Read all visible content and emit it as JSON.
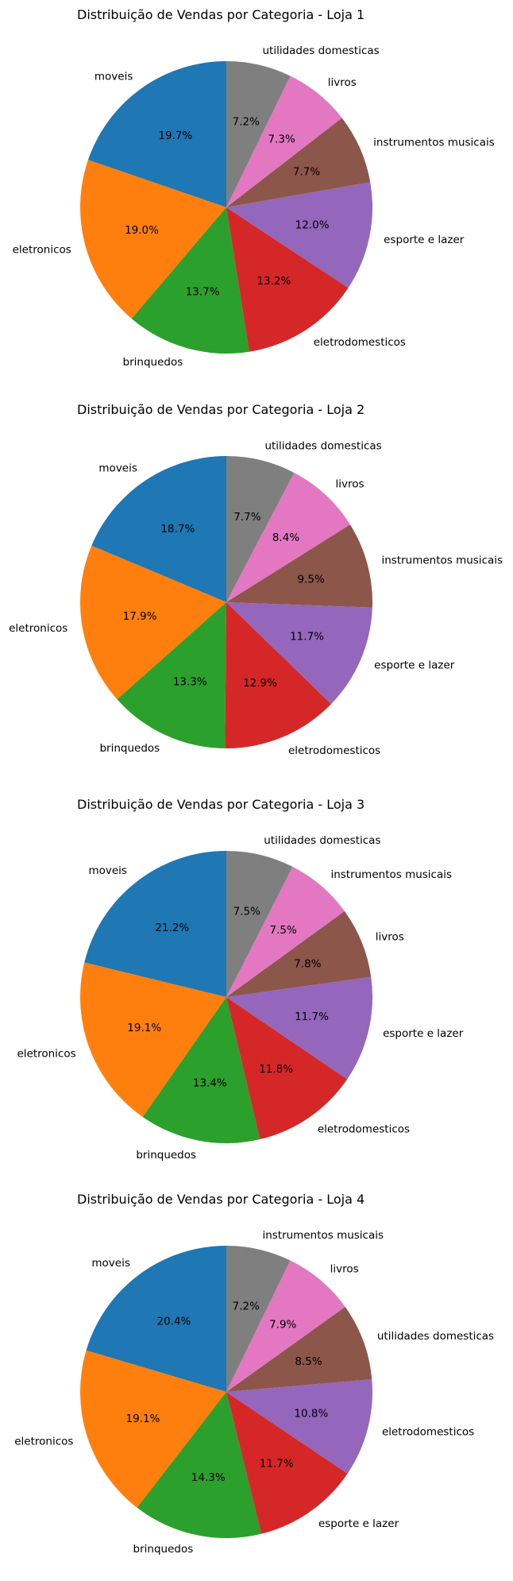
{
  "colors": [
    "#1f77b4",
    "#ff7f0e",
    "#2ca02c",
    "#d62728",
    "#9467bd",
    "#8c564b",
    "#e377c2",
    "#7f7f7f"
  ],
  "chart_data": [
    {
      "type": "pie",
      "title": "Distribuição de Vendas por Categoria - Loja 1",
      "start_angle_deg": 90,
      "direction": "counterclockwise",
      "labels": [
        "moveis",
        "eletronicos",
        "brinquedos",
        "eletrodomesticos",
        "esporte e lazer",
        "instrumentos musicais",
        "livros",
        "utilidades domesticas"
      ],
      "values": [
        19.7,
        19.0,
        13.7,
        13.2,
        12.0,
        7.7,
        7.3,
        7.2
      ],
      "value_labels": [
        "19.7%",
        "19.0%",
        "13.7%",
        "13.2%",
        "12.0%",
        "7.7%",
        "7.3%",
        "7.2%"
      ]
    },
    {
      "type": "pie",
      "title": "Distribuição de Vendas por Categoria - Loja 2",
      "start_angle_deg": 90,
      "direction": "counterclockwise",
      "labels": [
        "moveis",
        "eletronicos",
        "brinquedos",
        "eletrodomesticos",
        "esporte e lazer",
        "instrumentos musicais",
        "livros",
        "utilidades domesticas"
      ],
      "values": [
        18.7,
        17.9,
        13.3,
        12.9,
        11.7,
        9.5,
        8.4,
        7.7
      ],
      "value_labels": [
        "18.7%",
        "17.9%",
        "13.3%",
        "12.9%",
        "11.7%",
        "9.5%",
        "8.4%",
        "7.7%"
      ]
    },
    {
      "type": "pie",
      "title": "Distribuição de Vendas por Categoria - Loja 3",
      "start_angle_deg": 90,
      "direction": "counterclockwise",
      "labels": [
        "moveis",
        "eletronicos",
        "brinquedos",
        "eletrodomesticos",
        "esporte e lazer",
        "livros",
        "instrumentos musicais",
        "utilidades domesticas"
      ],
      "values": [
        21.2,
        19.1,
        13.4,
        11.8,
        11.7,
        7.8,
        7.5,
        7.5
      ],
      "value_labels": [
        "21.2%",
        "19.1%",
        "13.4%",
        "11.8%",
        "11.7%",
        "7.8%",
        "7.5%",
        "7.5%"
      ]
    },
    {
      "type": "pie",
      "title": "Distribuição de Vendas por Categoria - Loja 4",
      "start_angle_deg": 90,
      "direction": "counterclockwise",
      "labels": [
        "moveis",
        "eletronicos",
        "brinquedos",
        "esporte e lazer",
        "eletrodomesticos",
        "utilidades domesticas",
        "livros",
        "instrumentos musicais"
      ],
      "values": [
        20.4,
        19.1,
        14.3,
        11.7,
        10.8,
        8.5,
        7.9,
        7.2
      ],
      "value_labels": [
        "20.4%",
        "19.1%",
        "14.3%",
        "11.7%",
        "10.8%",
        "8.5%",
        "7.9%",
        "7.2%"
      ]
    }
  ]
}
